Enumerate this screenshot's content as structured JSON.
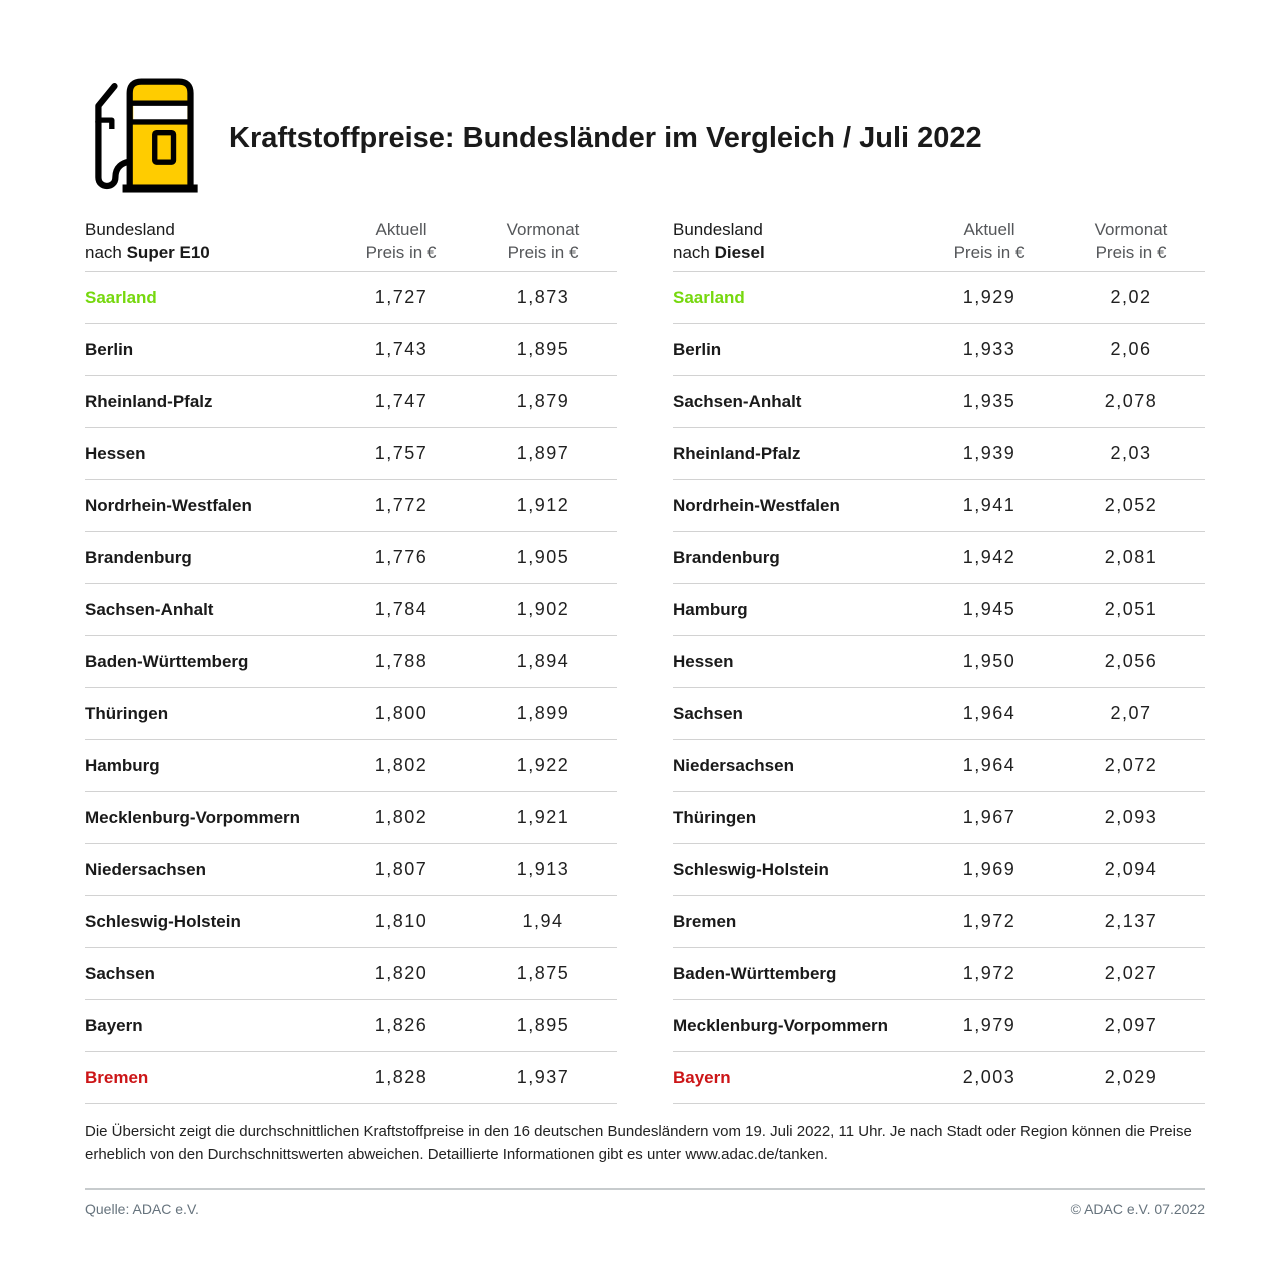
{
  "header": {
    "title": "Kraftstoffpreise: Bundesländer im Vergleich / Juli 2022"
  },
  "colors": {
    "adac_yellow": "#ffcc00",
    "best_green": "#76d80e",
    "worst_red": "#cc1517",
    "divider_gray": "#d2d2d2",
    "header_gray": "#55575a",
    "footer_gray": "#66737d"
  },
  "tables": [
    {
      "id": "super-e10",
      "col1": {
        "line1": "Bundesland",
        "line2_prefix": "nach ",
        "line2_bold": "Super E10"
      },
      "col2": {
        "line1": "Aktuell",
        "line2": "Preis in €"
      },
      "col3": {
        "line1": "Vormonat",
        "line2": "Preis in €"
      },
      "rows": [
        {
          "name": "Saarland",
          "aktuell": "1,727",
          "vormonat": "1,873",
          "highlight": "green"
        },
        {
          "name": "Berlin",
          "aktuell": "1,743",
          "vormonat": "1,895",
          "highlight": null
        },
        {
          "name": "Rheinland-Pfalz",
          "aktuell": "1,747",
          "vormonat": "1,879",
          "highlight": null
        },
        {
          "name": "Hessen",
          "aktuell": "1,757",
          "vormonat": "1,897",
          "highlight": null
        },
        {
          "name": "Nordrhein-Westfalen",
          "aktuell": "1,772",
          "vormonat": "1,912",
          "highlight": null
        },
        {
          "name": "Brandenburg",
          "aktuell": "1,776",
          "vormonat": "1,905",
          "highlight": null
        },
        {
          "name": "Sachsen-Anhalt",
          "aktuell": "1,784",
          "vormonat": "1,902",
          "highlight": null
        },
        {
          "name": "Baden-Württemberg",
          "aktuell": "1,788",
          "vormonat": "1,894",
          "highlight": null
        },
        {
          "name": "Thüringen",
          "aktuell": "1,800",
          "vormonat": "1,899",
          "highlight": null
        },
        {
          "name": "Hamburg",
          "aktuell": "1,802",
          "vormonat": "1,922",
          "highlight": null
        },
        {
          "name": "Mecklenburg-Vorpommern",
          "aktuell": "1,802",
          "vormonat": "1,921",
          "highlight": null
        },
        {
          "name": "Niedersachsen",
          "aktuell": "1,807",
          "vormonat": "1,913",
          "highlight": null
        },
        {
          "name": "Schleswig-Holstein",
          "aktuell": "1,810",
          "vormonat": "1,94",
          "highlight": null
        },
        {
          "name": "Sachsen",
          "aktuell": "1,820",
          "vormonat": "1,875",
          "highlight": null
        },
        {
          "name": "Bayern",
          "aktuell": "1,826",
          "vormonat": "1,895",
          "highlight": null
        },
        {
          "name": "Bremen",
          "aktuell": "1,828",
          "vormonat": "1,937",
          "highlight": "red"
        }
      ]
    },
    {
      "id": "diesel",
      "col1": {
        "line1": "Bundesland",
        "line2_prefix": "nach ",
        "line2_bold": "Diesel"
      },
      "col2": {
        "line1": "Aktuell",
        "line2": "Preis in €"
      },
      "col3": {
        "line1": "Vormonat",
        "line2": "Preis in €"
      },
      "rows": [
        {
          "name": "Saarland",
          "aktuell": "1,929",
          "vormonat": "2,02",
          "highlight": "green"
        },
        {
          "name": "Berlin",
          "aktuell": "1,933",
          "vormonat": "2,06",
          "highlight": null
        },
        {
          "name": "Sachsen-Anhalt",
          "aktuell": "1,935",
          "vormonat": "2,078",
          "highlight": null
        },
        {
          "name": "Rheinland-Pfalz",
          "aktuell": "1,939",
          "vormonat": "2,03",
          "highlight": null
        },
        {
          "name": "Nordrhein-Westfalen",
          "aktuell": "1,941",
          "vormonat": "2,052",
          "highlight": null
        },
        {
          "name": "Brandenburg",
          "aktuell": "1,942",
          "vormonat": "2,081",
          "highlight": null
        },
        {
          "name": "Hamburg",
          "aktuell": "1,945",
          "vormonat": "2,051",
          "highlight": null
        },
        {
          "name": "Hessen",
          "aktuell": "1,950",
          "vormonat": "2,056",
          "highlight": null
        },
        {
          "name": "Sachsen",
          "aktuell": "1,964",
          "vormonat": "2,07",
          "highlight": null
        },
        {
          "name": "Niedersachsen",
          "aktuell": "1,964",
          "vormonat": "2,072",
          "highlight": null
        },
        {
          "name": "Thüringen",
          "aktuell": "1,967",
          "vormonat": "2,093",
          "highlight": null
        },
        {
          "name": "Schleswig-Holstein",
          "aktuell": "1,969",
          "vormonat": "2,094",
          "highlight": null
        },
        {
          "name": "Bremen",
          "aktuell": "1,972",
          "vormonat": "2,137",
          "highlight": null
        },
        {
          "name": "Baden-Württemberg",
          "aktuell": "1,972",
          "vormonat": "2,027",
          "highlight": null
        },
        {
          "name": "Mecklenburg-Vorpommern",
          "aktuell": "1,979",
          "vormonat": "2,097",
          "highlight": null
        },
        {
          "name": "Bayern",
          "aktuell": "2,003",
          "vormonat": "2,029",
          "highlight": "red"
        }
      ]
    }
  ],
  "chart_data": [
    {
      "type": "table",
      "title": "Bundesland nach Super E10",
      "columns": [
        "Bundesland",
        "Aktuell Preis in €",
        "Vormonat Preis in €"
      ],
      "rows": [
        [
          "Saarland",
          1.727,
          1.873
        ],
        [
          "Berlin",
          1.743,
          1.895
        ],
        [
          "Rheinland-Pfalz",
          1.747,
          1.879
        ],
        [
          "Hessen",
          1.757,
          1.897
        ],
        [
          "Nordrhein-Westfalen",
          1.772,
          1.912
        ],
        [
          "Brandenburg",
          1.776,
          1.905
        ],
        [
          "Sachsen-Anhalt",
          1.784,
          1.902
        ],
        [
          "Baden-Württemberg",
          1.788,
          1.894
        ],
        [
          "Thüringen",
          1.8,
          1.899
        ],
        [
          "Hamburg",
          1.802,
          1.922
        ],
        [
          "Mecklenburg-Vorpommern",
          1.802,
          1.921
        ],
        [
          "Niedersachsen",
          1.807,
          1.913
        ],
        [
          "Schleswig-Holstein",
          1.81,
          1.94
        ],
        [
          "Sachsen",
          1.82,
          1.875
        ],
        [
          "Bayern",
          1.826,
          1.895
        ],
        [
          "Bremen",
          1.828,
          1.937
        ]
      ],
      "annotations": {
        "cheapest_green": "Saarland",
        "most_expensive_red": "Bremen"
      }
    },
    {
      "type": "table",
      "title": "Bundesland nach Diesel",
      "columns": [
        "Bundesland",
        "Aktuell Preis in €",
        "Vormonat Preis in €"
      ],
      "rows": [
        [
          "Saarland",
          1.929,
          2.02
        ],
        [
          "Berlin",
          1.933,
          2.06
        ],
        [
          "Sachsen-Anhalt",
          1.935,
          2.078
        ],
        [
          "Rheinland-Pfalz",
          1.939,
          2.03
        ],
        [
          "Nordrhein-Westfalen",
          1.941,
          2.052
        ],
        [
          "Brandenburg",
          1.942,
          2.081
        ],
        [
          "Hamburg",
          1.945,
          2.051
        ],
        [
          "Hessen",
          1.95,
          2.056
        ],
        [
          "Sachsen",
          1.964,
          2.07
        ],
        [
          "Niedersachsen",
          1.964,
          2.072
        ],
        [
          "Thüringen",
          1.967,
          2.093
        ],
        [
          "Schleswig-Holstein",
          1.969,
          2.094
        ],
        [
          "Bremen",
          1.972,
          2.137
        ],
        [
          "Baden-Württemberg",
          1.972,
          2.027
        ],
        [
          "Mecklenburg-Vorpommern",
          1.979,
          2.097
        ],
        [
          "Bayern",
          2.003,
          2.029
        ]
      ],
      "annotations": {
        "cheapest_green": "Saarland",
        "most_expensive_red": "Bayern"
      }
    }
  ],
  "footnote": {
    "text": "Die Übersicht zeigt die durchschnittlichen Kraftstoffpreise in den 16 deutschen Bundesländern vom 19. Juli 2022, 11 Uhr. Je nach Stadt oder Region können die Preise erheblich von den Durchschnittswerten abweichen. Detaillierte Informationen gibt es unter www.adac.de/tanken."
  },
  "footer": {
    "source": "Quelle: ADAC e.V.",
    "copyright": "© ADAC e.V. 07.2022"
  }
}
